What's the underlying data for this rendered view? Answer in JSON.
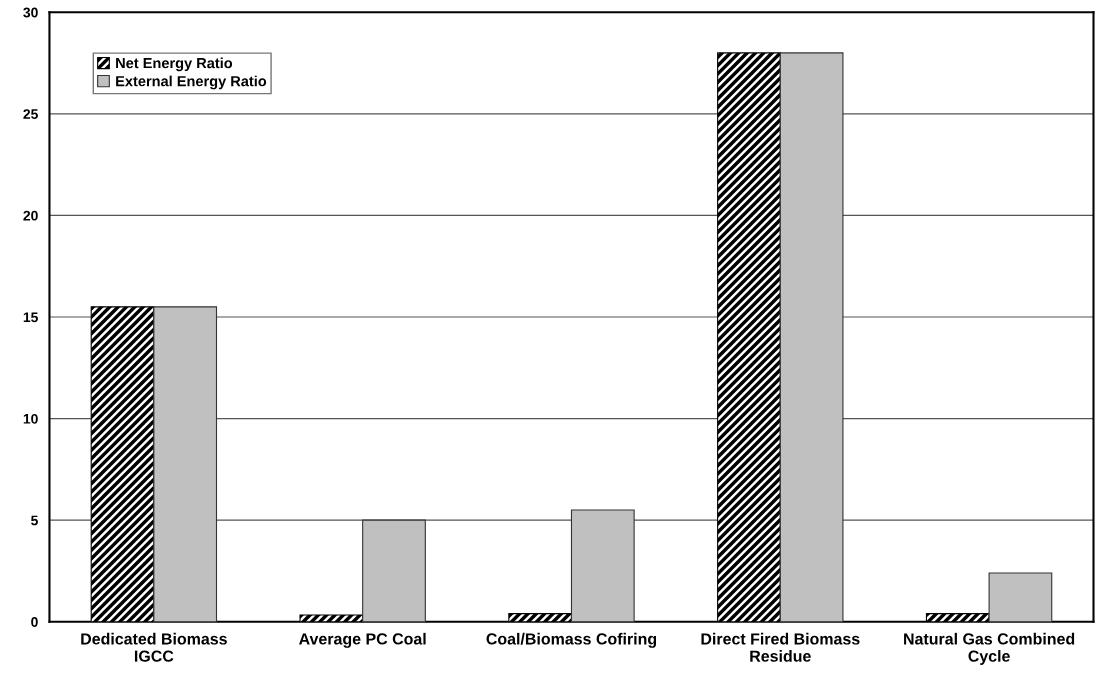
{
  "chart_data": {
    "type": "bar",
    "categories": [
      "Dedicated Biomass\nIGCC",
      "Average PC Coal",
      "Coal/Biomass Cofiring",
      "Direct Fired Biomass\nResidue",
      "Natural Gas Combined\nCycle"
    ],
    "series": [
      {
        "name": "Net Energy Ratio",
        "color": "#000000",
        "values": [
          15.5,
          0.33,
          0.4,
          28,
          0.4
        ]
      },
      {
        "name": "External Energy Ratio",
        "color": "#c0c0c0",
        "values": [
          15.5,
          5,
          5.5,
          28,
          2.4
        ]
      }
    ],
    "ylim": [
      0,
      30
    ],
    "yticks": [
      0,
      5,
      10,
      15,
      20,
      25,
      30
    ],
    "grid": "y",
    "legend": "top left"
  }
}
